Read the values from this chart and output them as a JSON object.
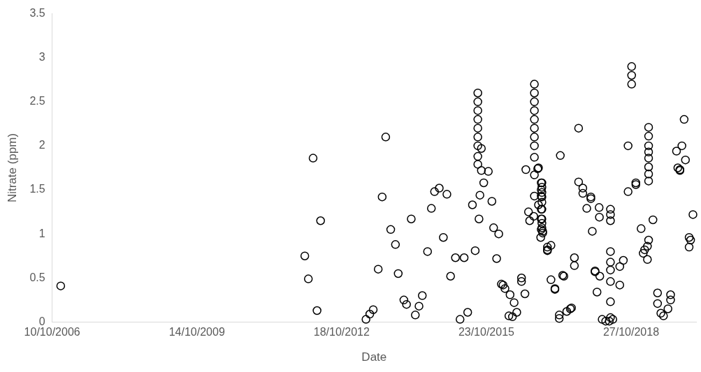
{
  "chart_data": {
    "type": "scatter",
    "xlabel": "Date",
    "ylabel": "Nitrate (ppm)",
    "x": [
      "2006-12-14",
      "2012-01-12",
      "2012-02-08",
      "2012-03-15",
      "2012-04-14",
      "2012-05-11",
      "2013-04-21",
      "2013-05-20",
      "2013-06-15",
      "2013-07-23",
      "2013-08-22",
      "2013-09-18",
      "2013-10-26",
      "2013-12-01",
      "2013-12-22",
      "2014-02-03",
      "2014-02-23",
      "2014-03-31",
      "2014-05-01",
      "2014-05-29",
      "2014-06-23",
      "2014-08-02",
      "2014-08-31",
      "2014-09-24",
      "2014-10-30",
      "2014-11-30",
      "2014-12-27",
      "2015-01-24",
      "2015-03-02",
      "2015-04-06",
      "2015-05-07",
      "2015-06-03",
      "2015-07-09",
      "2015-07-30",
      "2015-08-19",
      "2015-08-19",
      "2015-08-19",
      "2015-08-19",
      "2015-08-19",
      "2015-08-19",
      "2015-08-19",
      "2015-08-19",
      "2015-08-19",
      "2015-08-28",
      "2015-09-04",
      "2015-09-15",
      "2015-09-15",
      "2015-10-03",
      "2015-11-07",
      "2015-12-04",
      "2015-12-17",
      "2016-01-09",
      "2016-01-25",
      "2016-02-14",
      "2016-02-27",
      "2016-03-12",
      "2016-04-11",
      "2016-04-20",
      "2016-05-08",
      "2016-05-21",
      "2016-06-10",
      "2016-07-16",
      "2016-07-16",
      "2016-08-11",
      "2016-08-18",
      "2016-09-07",
      "2016-09-16",
      "2016-10-17",
      "2016-10-22",
      "2016-10-22",
      "2016-10-22",
      "2016-10-22",
      "2016-10-22",
      "2016-10-22",
      "2016-10-22",
      "2016-10-22",
      "2016-10-22",
      "2016-10-22",
      "2016-10-22",
      "2016-11-16",
      "2016-11-22",
      "2016-11-22",
      "2016-12-13",
      "2016-12-13",
      "2016-12-13",
      "2016-12-13",
      "2016-12-13",
      "2016-12-13",
      "2016-12-09",
      "2016-12-18",
      "2016-12-18",
      "2016-12-18",
      "2016-12-18",
      "2016-12-18",
      "2016-12-18",
      "2016-12-18",
      "2016-12-18",
      "2016-12-18",
      "2016-12-24",
      "2016-12-24",
      "2017-01-29",
      "2017-01-29",
      "2017-01-29",
      "2017-02-25",
      "2017-02-25",
      "2017-03-27",
      "2017-03-27",
      "2017-04-29",
      "2017-04-29",
      "2017-05-07",
      "2017-05-25",
      "2017-06-03",
      "2017-06-25",
      "2017-07-22",
      "2017-07-31",
      "2017-08-22",
      "2017-08-22",
      "2017-09-23",
      "2017-09-23",
      "2017-10-25",
      "2017-10-25",
      "2017-11-24",
      "2017-12-25",
      "2017-12-25",
      "2018-01-05",
      "2018-01-26",
      "2018-01-26",
      "2018-02-10",
      "2018-02-26",
      "2018-02-28",
      "2018-03-03",
      "2018-03-21",
      "2018-04-17",
      "2018-05-14",
      "2018-05-23",
      "2018-05-23",
      "2018-05-23",
      "2018-05-23",
      "2018-05-23",
      "2018-05-23",
      "2018-05-23",
      "2018-05-23",
      "2018-05-23",
      "2018-06-10",
      "2018-08-02",
      "2018-08-02",
      "2018-08-29",
      "2018-10-04",
      "2018-10-04",
      "2018-10-31",
      "2018-10-31",
      "2018-10-31",
      "2018-12-02",
      "2018-12-02",
      "2019-01-11",
      "2019-01-27",
      "2019-02-07",
      "2019-02-28",
      "2019-02-28",
      "2019-03-09",
      "2019-03-09",
      "2019-03-09",
      "2019-03-09",
      "2019-03-09",
      "2019-03-09",
      "2019-03-09",
      "2019-03-09",
      "2019-03-09",
      "2019-04-11",
      "2019-05-16",
      "2019-05-16",
      "2019-06-10",
      "2019-06-30",
      "2019-08-03",
      "2019-08-23",
      "2019-08-23",
      "2019-10-07",
      "2019-10-17",
      "2019-11-02",
      "2019-11-02",
      "2019-11-17",
      "2019-12-04",
      "2019-12-14",
      "2020-01-11",
      "2020-01-11",
      "2020-01-22",
      "2020-02-09"
    ],
    "values": [
      0.41,
      0.75,
      0.49,
      1.86,
      0.13,
      1.15,
      0.03,
      0.09,
      0.14,
      0.6,
      1.42,
      2.1,
      1.05,
      0.88,
      0.55,
      0.25,
      0.2,
      1.17,
      0.08,
      0.18,
      0.3,
      0.8,
      1.29,
      1.48,
      1.52,
      0.96,
      1.45,
      0.52,
      0.73,
      0.03,
      0.73,
      0.11,
      1.33,
      0.81,
      2.6,
      2.5,
      2.4,
      2.3,
      2.2,
      2.1,
      2.0,
      1.88,
      1.79,
      1.17,
      1.44,
      1.97,
      1.72,
      1.58,
      1.71,
      1.37,
      1.07,
      0.72,
      1.0,
      0.43,
      0.42,
      0.38,
      0.07,
      0.31,
      0.06,
      0.22,
      0.11,
      0.5,
      0.46,
      0.32,
      1.73,
      1.25,
      1.15,
      1.2,
      2.7,
      2.6,
      2.5,
      2.4,
      2.3,
      2.2,
      2.1,
      2.0,
      1.87,
      1.67,
      1.43,
      1.74,
      1.33,
      1.75,
      1.58,
      1.5,
      1.43,
      1.28,
      1.17,
      1.05,
      0.96,
      1.58,
      1.53,
      1.47,
      1.42,
      1.36,
      1.28,
      1.17,
      1.12,
      1.07,
      1.03,
      1.01,
      0.82,
      0.85,
      0.81,
      0.87,
      0.48,
      0.38,
      0.37,
      0.04,
      0.08,
      1.89,
      0.53,
      0.52,
      0.12,
      0.15,
      0.16,
      0.73,
      0.64,
      2.2,
      1.59,
      1.52,
      1.46,
      1.29,
      1.42,
      1.4,
      1.03,
      0.57,
      0.58,
      0.34,
      1.3,
      1.19,
      0.52,
      0.03,
      0.01,
      0.01,
      1.28,
      1.22,
      1.15,
      0.8,
      0.68,
      0.59,
      0.46,
      0.23,
      0.05,
      0.03,
      0.42,
      0.63,
      0.7,
      2.0,
      1.48,
      2.9,
      2.8,
      2.7,
      1.58,
      1.56,
      1.06,
      0.78,
      0.82,
      0.86,
      0.71,
      0.93,
      2.21,
      2.11,
      2.0,
      1.93,
      1.86,
      1.76,
      1.68,
      1.6,
      1.16,
      0.33,
      0.21,
      0.1,
      0.07,
      0.15,
      0.31,
      0.25,
      1.94,
      1.75,
      1.73,
      1.72,
      2.0,
      2.3,
      1.84,
      0.96,
      0.85,
      0.93,
      1.22
    ],
    "color": "#000000",
    "marker": "circle",
    "xlim": [
      "2006-10-10",
      "2020-03-04"
    ],
    "xticks": [
      {
        "value": "2006-10-10",
        "label": "10/10/2006"
      },
      {
        "value": "2009-10-14",
        "label": "14/10/2009"
      },
      {
        "value": "2012-10-18",
        "label": "18/10/2012"
      },
      {
        "value": "2015-10-23",
        "label": "23/10/2015"
      },
      {
        "value": "2018-10-27",
        "label": "27/10/2018"
      }
    ],
    "ylim": [
      0,
      3.5
    ],
    "yticks": [
      0,
      0.5,
      1,
      1.5,
      2,
      2.5,
      3,
      3.5
    ],
    "grid": false,
    "legend": false
  }
}
